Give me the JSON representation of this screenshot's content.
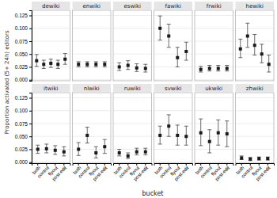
{
  "chart_data": {
    "type": "errorbar",
    "xlabel": "bucket",
    "ylabel": "Proportion activated (5+ 24h) editors",
    "ylim": [
      -0.002,
      0.135
    ],
    "yticks": [
      {
        "value": 0.0,
        "label": "0.000"
      },
      {
        "value": 0.025,
        "label": "0.025"
      },
      {
        "value": 0.05,
        "label": "0.050"
      },
      {
        "value": 0.075,
        "label": "0.075"
      },
      {
        "value": 0.1,
        "label": "0.100"
      },
      {
        "value": 0.125,
        "label": "0.125"
      }
    ],
    "grid": true,
    "color": "#1a1a1a",
    "panels": [
      {
        "title": "dewiki",
        "tick_labels": "y",
        "categories": [
          null,
          null,
          null,
          null,
          null
        ],
        "values": [
          0.037,
          0.03,
          0.032,
          0.03,
          0.04
        ],
        "lower": [
          0.026,
          0.022,
          0.024,
          0.022,
          0.03
        ],
        "upper": [
          0.049,
          0.038,
          0.04,
          0.038,
          0.051
        ]
      },
      {
        "title": "enwiki",
        "tick_labels": false,
        "categories": [
          null,
          null,
          null,
          null
        ],
        "values": [
          0.03,
          0.03,
          0.03,
          0.03
        ],
        "lower": [
          0.025,
          0.025,
          0.025,
          0.025
        ],
        "upper": [
          0.035,
          0.035,
          0.035,
          0.035
        ]
      },
      {
        "title": "eswiki",
        "tick_labels": false,
        "categories": [
          null,
          null,
          null,
          null
        ],
        "values": [
          0.025,
          0.028,
          0.023,
          0.022
        ],
        "lower": [
          0.018,
          0.02,
          0.016,
          0.015
        ],
        "upper": [
          0.033,
          0.037,
          0.031,
          0.03
        ]
      },
      {
        "title": "fawiki",
        "tick_labels": false,
        "categories": [
          null,
          null,
          null,
          null
        ],
        "values": [
          0.1,
          0.085,
          0.043,
          0.055
        ],
        "lower": [
          0.077,
          0.063,
          0.025,
          0.038
        ],
        "upper": [
          0.124,
          0.108,
          0.063,
          0.073
        ]
      },
      {
        "title": "frwiki",
        "tick_labels": false,
        "categories": [
          null,
          null,
          null,
          null
        ],
        "values": [
          0.02,
          0.022,
          0.022,
          0.022
        ],
        "lower": [
          0.015,
          0.017,
          0.017,
          0.017
        ],
        "upper": [
          0.026,
          0.028,
          0.028,
          0.028
        ]
      },
      {
        "title": "hewiki",
        "tick_labels": false,
        "categories": [
          null,
          null,
          null,
          null,
          null
        ],
        "values": [
          0.06,
          0.085,
          0.067,
          0.05,
          0.03
        ],
        "lower": [
          0.043,
          0.063,
          0.048,
          0.033,
          0.015
        ],
        "upper": [
          0.079,
          0.11,
          0.088,
          0.069,
          0.048
        ]
      },
      {
        "title": "itwiki",
        "categories": [
          "both",
          "control",
          "flyout",
          "post-edit"
        ],
        "values": [
          0.025,
          0.026,
          0.023,
          0.02
        ],
        "lower": [
          0.017,
          0.018,
          0.015,
          0.012
        ],
        "upper": [
          0.033,
          0.035,
          0.032,
          0.03
        ]
      },
      {
        "title": "nlwiki",
        "tick_labels": "x",
        "categories": [
          "both",
          "control",
          "flyout",
          "post-edit"
        ],
        "values": [
          0.025,
          0.052,
          0.018,
          0.03
        ],
        "lower": [
          0.013,
          0.037,
          0.008,
          0.017
        ],
        "upper": [
          0.038,
          0.068,
          0.03,
          0.044
        ]
      },
      {
        "title": "ruwiki",
        "tick_labels": "x",
        "categories": [
          "both",
          "control",
          "flyout",
          "post-edit"
        ],
        "values": [
          0.018,
          0.012,
          0.02,
          0.02
        ],
        "lower": [
          0.012,
          0.007,
          0.014,
          0.014
        ],
        "upper": [
          0.025,
          0.018,
          0.027,
          0.027
        ]
      },
      {
        "title": "svwiki",
        "tick_labels": "x",
        "categories": [
          "both",
          "control",
          "flyout",
          "post-edit"
        ],
        "values": [
          0.052,
          0.07,
          0.052,
          0.05
        ],
        "lower": [
          0.035,
          0.05,
          0.033,
          0.033
        ],
        "upper": [
          0.07,
          0.092,
          0.072,
          0.07
        ]
      },
      {
        "title": "ukwiki",
        "tick_labels": "x",
        "categories": [
          "both",
          "control",
          "flyout",
          "post-edit"
        ],
        "values": [
          0.057,
          0.04,
          0.057,
          0.055
        ],
        "lower": [
          0.032,
          0.018,
          0.033,
          0.03
        ],
        "upper": [
          0.084,
          0.063,
          0.082,
          0.08
        ]
      },
      {
        "title": "zhwiki",
        "tick_labels": "x",
        "categories": [
          "both",
          "control",
          "flyout",
          "post-edit"
        ],
        "values": [
          0.008,
          0.006,
          0.007,
          0.007
        ],
        "lower": [
          0.005,
          0.003,
          0.004,
          0.004
        ],
        "upper": [
          0.012,
          0.009,
          0.01,
          0.01
        ]
      }
    ]
  }
}
